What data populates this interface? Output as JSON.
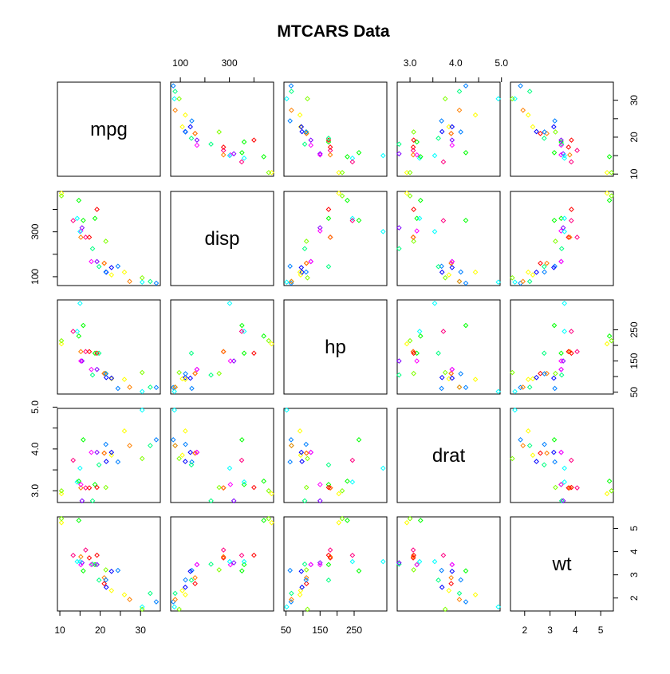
{
  "chart_data": {
    "type": "scatter",
    "title": "MTCARS Data",
    "variables": [
      "mpg",
      "disp",
      "hp",
      "drat",
      "wt"
    ],
    "ranges": {
      "mpg": [
        9.4,
        34.9
      ],
      "disp": [
        60.6,
        480
      ],
      "hp": [
        44,
        346
      ],
      "drat": [
        2.72,
        4.97
      ],
      "wt": [
        1.44,
        5.5
      ]
    },
    "ticks": {
      "mpg": [
        10,
        20,
        30
      ],
      "disp": [
        100,
        300
      ],
      "hp": [
        50,
        150,
        250
      ],
      "drat": [
        3.0,
        4.0,
        5.0
      ],
      "wt": [
        2,
        3,
        4,
        5
      ]
    },
    "minor_ticks": {
      "mpg": [
        15,
        25
      ],
      "disp": [
        200,
        400
      ],
      "hp": [
        100,
        200
      ],
      "drat": [
        3.5,
        4.5
      ],
      "wt": []
    },
    "tick_labels": {
      "mpg": [
        "10",
        "20",
        "30"
      ],
      "disp": [
        "100",
        "300"
      ],
      "hp": [
        "50",
        "150",
        "250"
      ],
      "drat": [
        "3.0",
        "4.0",
        "5.0"
      ],
      "wt": [
        "2",
        "3",
        "4",
        "5"
      ]
    },
    "point_colors": [
      "#FF0000",
      "#FF8000",
      "#FFFF00",
      "#80FF00",
      "#00FF00",
      "#00FF80",
      "#00FFFF",
      "#0080FF",
      "#0000FF",
      "#8000FF",
      "#FF00FF",
      "#FF0080"
    ],
    "points": [
      {
        "mpg": 21.0,
        "disp": 160,
        "hp": 110,
        "drat": 3.9,
        "wt": 2.62
      },
      {
        "mpg": 21.0,
        "disp": 160,
        "hp": 110,
        "drat": 3.9,
        "wt": 2.875
      },
      {
        "mpg": 22.8,
        "disp": 108,
        "hp": 93,
        "drat": 3.85,
        "wt": 2.32
      },
      {
        "mpg": 21.4,
        "disp": 258,
        "hp": 110,
        "drat": 3.08,
        "wt": 3.215
      },
      {
        "mpg": 18.7,
        "disp": 360,
        "hp": 175,
        "drat": 3.15,
        "wt": 3.44
      },
      {
        "mpg": 18.1,
        "disp": 225,
        "hp": 105,
        "drat": 2.76,
        "wt": 3.46
      },
      {
        "mpg": 14.3,
        "disp": 360,
        "hp": 245,
        "drat": 3.21,
        "wt": 3.57
      },
      {
        "mpg": 24.4,
        "disp": 146.7,
        "hp": 62,
        "drat": 3.69,
        "wt": 3.19
      },
      {
        "mpg": 22.8,
        "disp": 140.8,
        "hp": 95,
        "drat": 3.92,
        "wt": 3.15
      },
      {
        "mpg": 19.2,
        "disp": 167.6,
        "hp": 123,
        "drat": 3.92,
        "wt": 3.44
      },
      {
        "mpg": 17.8,
        "disp": 167.6,
        "hp": 123,
        "drat": 3.92,
        "wt": 3.44
      },
      {
        "mpg": 16.4,
        "disp": 275.8,
        "hp": 180,
        "drat": 3.07,
        "wt": 4.07
      },
      {
        "mpg": 17.3,
        "disp": 275.8,
        "hp": 180,
        "drat": 3.07,
        "wt": 3.73
      },
      {
        "mpg": 15.2,
        "disp": 275.8,
        "hp": 180,
        "drat": 3.07,
        "wt": 3.78
      },
      {
        "mpg": 10.4,
        "disp": 472,
        "hp": 205,
        "drat": 2.93,
        "wt": 5.25
      },
      {
        "mpg": 10.4,
        "disp": 460,
        "hp": 215,
        "drat": 3.0,
        "wt": 5.424
      },
      {
        "mpg": 14.7,
        "disp": 440,
        "hp": 230,
        "drat": 3.23,
        "wt": 5.345
      },
      {
        "mpg": 32.4,
        "disp": 78.7,
        "hp": 66,
        "drat": 4.08,
        "wt": 2.2
      },
      {
        "mpg": 30.4,
        "disp": 75.7,
        "hp": 52,
        "drat": 4.93,
        "wt": 1.615
      },
      {
        "mpg": 33.9,
        "disp": 71.1,
        "hp": 65,
        "drat": 4.22,
        "wt": 1.835
      },
      {
        "mpg": 21.5,
        "disp": 120.1,
        "hp": 97,
        "drat": 3.7,
        "wt": 2.465
      },
      {
        "mpg": 15.5,
        "disp": 318,
        "hp": 150,
        "drat": 2.76,
        "wt": 3.52
      },
      {
        "mpg": 15.2,
        "disp": 304,
        "hp": 150,
        "drat": 3.15,
        "wt": 3.435
      },
      {
        "mpg": 13.3,
        "disp": 350,
        "hp": 245,
        "drat": 3.73,
        "wt": 3.84
      },
      {
        "mpg": 19.2,
        "disp": 400,
        "hp": 175,
        "drat": 3.08,
        "wt": 3.845
      },
      {
        "mpg": 27.3,
        "disp": 79,
        "hp": 66,
        "drat": 4.08,
        "wt": 1.935
      },
      {
        "mpg": 26.0,
        "disp": 120.3,
        "hp": 91,
        "drat": 4.43,
        "wt": 2.14
      },
      {
        "mpg": 30.4,
        "disp": 95.1,
        "hp": 113,
        "drat": 3.77,
        "wt": 1.513
      },
      {
        "mpg": 15.8,
        "disp": 351,
        "hp": 264,
        "drat": 4.22,
        "wt": 3.17
      },
      {
        "mpg": 19.7,
        "disp": 145,
        "hp": 175,
        "drat": 3.62,
        "wt": 2.77
      },
      {
        "mpg": 15.0,
        "disp": 301,
        "hp": 335,
        "drat": 3.54,
        "wt": 3.57
      },
      {
        "mpg": 21.4,
        "disp": 121,
        "hp": 109,
        "drat": 4.11,
        "wt": 2.78
      }
    ]
  }
}
